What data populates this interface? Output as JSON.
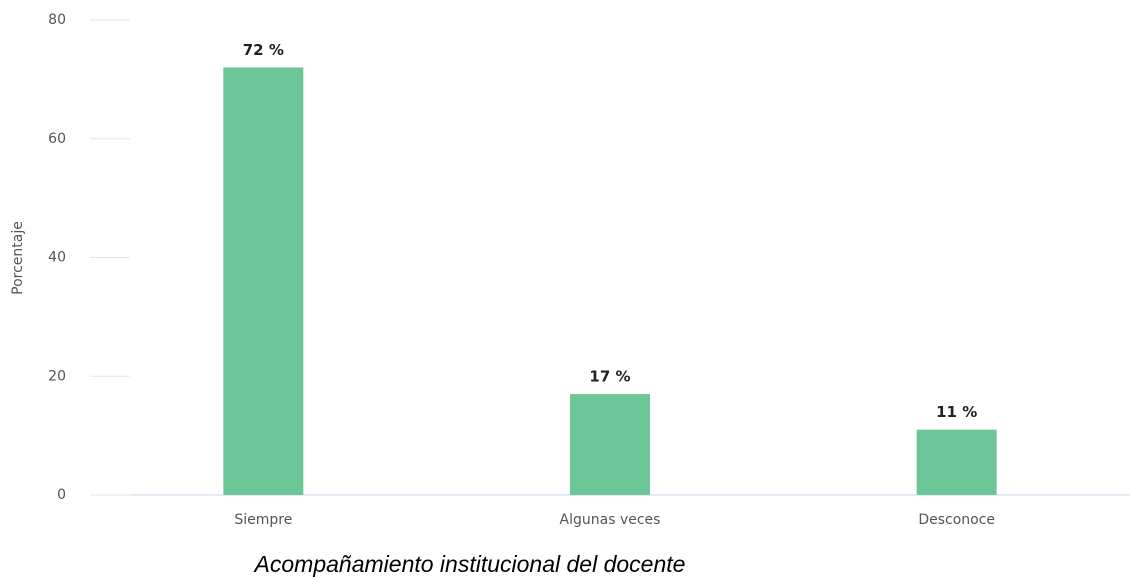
{
  "chart_data": {
    "type": "bar",
    "title": "Acompañamiento institucional del docente",
    "y_label": "Porcentaje",
    "categories": [
      "Siempre",
      "Algunas veces",
      "Desconoce"
    ],
    "values": [
      72,
      17,
      11
    ],
    "value_labels": [
      "72 %",
      "17 %",
      "11 %"
    ],
    "color": "#6cc697",
    "ylim": [
      0,
      80
    ],
    "yticks": [
      0,
      20,
      40,
      60,
      80
    ],
    "grid": true
  }
}
